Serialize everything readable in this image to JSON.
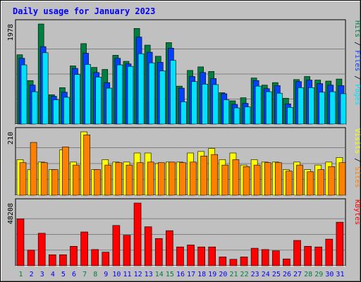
{
  "chart_data": {
    "type": "bar",
    "title": "Daily usage for January 2023",
    "categories": [
      "1",
      "2",
      "3",
      "4",
      "5",
      "6",
      "7",
      "8",
      "9",
      "10",
      "11",
      "12",
      "13",
      "14",
      "15",
      "16",
      "17",
      "18",
      "19",
      "20",
      "21",
      "22",
      "23",
      "24",
      "25",
      "26",
      "27",
      "28",
      "29",
      "30",
      "31"
    ],
    "weekend_days": [
      1,
      7,
      8,
      14,
      15,
      21,
      22,
      28,
      29
    ],
    "colors": {
      "title": "#0000ff",
      "background": "#c0c0c0",
      "hits": "#008040",
      "files": "#0040ff",
      "pages": "#00e0ff",
      "visits": "#ffff00",
      "sites": "#ff8000",
      "kbytes": "#ff0000",
      "weekday_label": "#0000ff",
      "weekend_label": "#008040"
    },
    "panels": [
      {
        "id": "top",
        "max_label": "1978",
        "ylim": [
          0,
          1978
        ],
        "legend": [
          {
            "text": "Pages",
            "color": "#00e0ff"
          },
          {
            "text": "Files",
            "color": "#0040ff"
          },
          {
            "text": "Hits",
            "color": "#008040"
          }
        ],
        "series": [
          {
            "name": "Hits",
            "color": "#008040",
            "values": [
              1370,
              860,
              1978,
              580,
              720,
              1150,
              1590,
              1120,
              1080,
              1360,
              1240,
              1890,
              1560,
              1340,
              1610,
              750,
              1060,
              1130,
              1040,
              620,
              460,
              520,
              910,
              770,
              820,
              510,
              880,
              940,
              870,
              850,
              890
            ]
          },
          {
            "name": "Files",
            "color": "#0040ff",
            "values": [
              1300,
              770,
              1530,
              550,
              630,
              1100,
              1400,
              1020,
              820,
              1300,
              1190,
              1720,
              1420,
              1220,
              1500,
              710,
              940,
              1020,
              900,
              600,
              390,
              410,
              860,
              700,
              760,
              400,
              840,
              870,
              800,
              770,
              760
            ]
          },
          {
            "name": "Pages",
            "color": "#00e0ff",
            "values": [
              1170,
              640,
              1410,
              480,
              530,
              980,
              1180,
              930,
              710,
              1170,
              1140,
              1390,
              1210,
              1050,
              1260,
              440,
              840,
              790,
              780,
              480,
              320,
              340,
              750,
              640,
              610,
              330,
              720,
              720,
              630,
              640,
              600
            ]
          }
        ]
      },
      {
        "id": "mid",
        "max_label": "210",
        "ylim": [
          0,
          210
        ],
        "legend": [
          {
            "text": "Sites",
            "color": "#ff8000"
          },
          {
            "text": "Visits",
            "color": "#ffff00"
          }
        ],
        "series": [
          {
            "name": "Visits",
            "color": "#ffff00",
            "values": [
              118,
              85,
              110,
              85,
              150,
              110,
              210,
              85,
              118,
              110,
              110,
              140,
              140,
              105,
              110,
              110,
              140,
              145,
              155,
              118,
              140,
              100,
              118,
              110,
              110,
              85,
              110,
              85,
              100,
              110,
              125
            ]
          },
          {
            "name": "Sites",
            "color": "#ff8000",
            "values": [
              108,
              175,
              108,
              85,
              160,
              100,
              200,
              85,
              100,
              108,
              100,
              108,
              110,
              108,
              110,
              108,
              110,
              130,
              135,
              100,
              118,
              95,
              100,
              108,
              108,
              80,
              100,
              78,
              85,
              95,
              108
            ]
          }
        ]
      },
      {
        "id": "bottom",
        "max_label": "48208",
        "ylim": [
          0,
          48208
        ],
        "legend": [
          {
            "text": "KBytes",
            "color": "#ff0000"
          }
        ],
        "series": [
          {
            "name": "KBytes",
            "color": "#ff0000",
            "values": [
              36000,
              12000,
              25000,
              8500,
              8500,
              15000,
              26000,
              12500,
              10500,
              31000,
              23500,
              48208,
              30000,
              21000,
              27000,
              14500,
              16000,
              14500,
              14500,
              6800,
              5000,
              6800,
              13500,
              12500,
              11500,
              5300,
              19500,
              15000,
              14500,
              20500,
              33500
            ]
          }
        ]
      }
    ]
  }
}
